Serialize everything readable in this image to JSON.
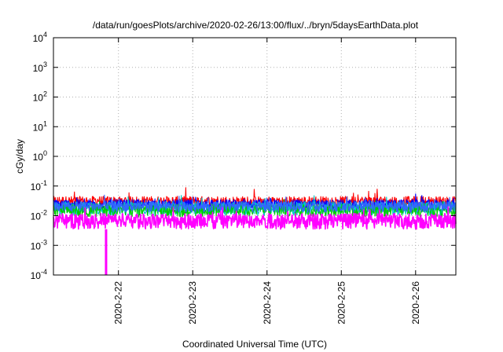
{
  "chart_data": {
    "type": "line",
    "title": "/data/run/goesPlots/archive/2020-02-26/13:00/flux/../bryn/5daysEarthData.plot",
    "xlabel": "Coordinated Universal Time (UTC)",
    "ylabel": "cGy/day",
    "y_scale": "log",
    "ylim": [
      0.0001,
      10000
    ],
    "y_ticks": [
      {
        "value": 0.0001,
        "base": "10",
        "exp": "-4"
      },
      {
        "value": 0.001,
        "base": "10",
        "exp": "-3"
      },
      {
        "value": 0.01,
        "base": "10",
        "exp": "-2"
      },
      {
        "value": 0.1,
        "base": "10",
        "exp": "-1"
      },
      {
        "value": 1,
        "base": "10",
        "exp": "0"
      },
      {
        "value": 10,
        "base": "10",
        "exp": "1"
      },
      {
        "value": 100,
        "base": "10",
        "exp": "2"
      },
      {
        "value": 1000,
        "base": "10",
        "exp": "3"
      },
      {
        "value": 10000,
        "base": "10",
        "exp": "4"
      }
    ],
    "xlim": [
      "2020-02-21 03:00",
      "2020-02-26 13:00"
    ],
    "x_ticks": [
      "2020-2-22",
      "2020-2-23",
      "2020-2-24",
      "2020-2-25",
      "2020-2-26"
    ],
    "grid": true,
    "legend": "none",
    "series": [
      {
        "color": "#ff0000",
        "typical_low": 0.018,
        "typical_high": 0.045,
        "peak": 0.09
      },
      {
        "color": "#0000ff",
        "typical_low": 0.015,
        "typical_high": 0.035,
        "peak": 0.06
      },
      {
        "color": "#00c8c8",
        "typical_low": 0.01,
        "typical_high": 0.03,
        "peak": 0.05
      },
      {
        "color": "#00cc00",
        "typical_low": 0.009,
        "typical_high": 0.025,
        "peak": 0.04
      },
      {
        "color": "#3366ff",
        "typical_low": 0.013,
        "typical_high": 0.03,
        "peak": 0.05
      },
      {
        "color": "#ff00ff",
        "typical_low": 0.0035,
        "typical_high": 0.012,
        "peak": 0.02
      }
    ],
    "dropout": {
      "time": "2020-02-21 20:00",
      "value": 0.0001,
      "color": "#ff00ff"
    }
  }
}
